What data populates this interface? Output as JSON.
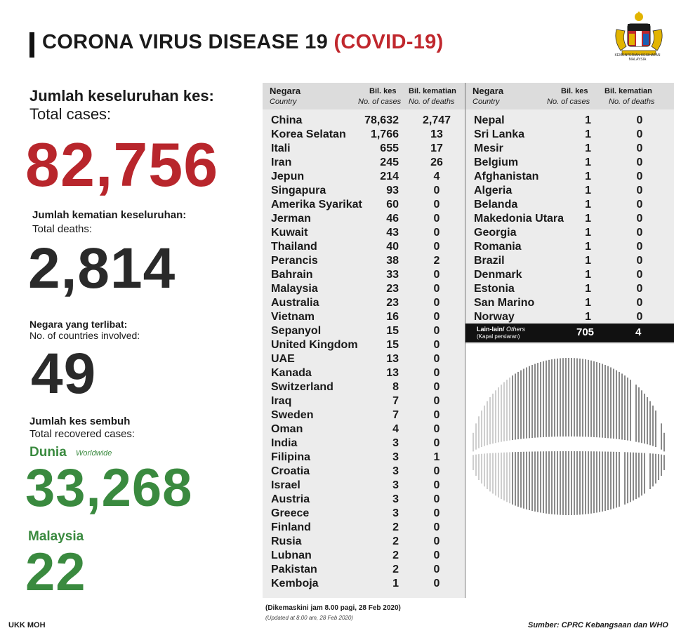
{
  "title": {
    "main": "CORONA VIRUS DISEASE 19",
    "paren": "(COVID-19)"
  },
  "crest": {
    "label_line1": "KEMENTERIAN KESIHATAN",
    "label_line2": "MALAYSIA"
  },
  "stats": {
    "total_cases_label_ms": "Jumlah keseluruhan kes:",
    "total_cases_label_en": "Total cases:",
    "total_cases": "82,756",
    "total_deaths_label_ms": "Jumlah kematian keseluruhan:",
    "total_deaths_label_en": "Total deaths:",
    "total_deaths": "2,814",
    "countries_label_ms": "Negara yang terlibat:",
    "countries_label_en": "No. of countries involved:",
    "countries": "49",
    "recovered_label_ms": "Jumlah kes sembuh",
    "recovered_label_en": "Total recovered cases:",
    "world_label": "Dunia",
    "world_label_en": "Worldwide",
    "world_recovered": "33,268",
    "malaysia_label": "Malaysia",
    "malaysia_recovered": "22"
  },
  "colors": {
    "red": "#b8262c",
    "green": "#3a8a3f",
    "dark": "#2a2a2a"
  },
  "table_headers": {
    "country_ms": "Negara",
    "country_en": "Country",
    "cases_ms": "Bil. kes",
    "cases_en": "No. of cases",
    "deaths_ms": "Bil. kematian",
    "deaths_en": "No. of deaths"
  },
  "table_left": [
    {
      "country": "China",
      "cases": "78,632",
      "deaths": "2,747"
    },
    {
      "country": "Korea Selatan",
      "cases": "1,766",
      "deaths": "13"
    },
    {
      "country": "Itali",
      "cases": "655",
      "deaths": "17"
    },
    {
      "country": "Iran",
      "cases": "245",
      "deaths": "26"
    },
    {
      "country": "Jepun",
      "cases": "214",
      "deaths": "4"
    },
    {
      "country": "Singapura",
      "cases": "93",
      "deaths": "0"
    },
    {
      "country": "Amerika Syarikat",
      "cases": "60",
      "deaths": "0"
    },
    {
      "country": "Jerman",
      "cases": "46",
      "deaths": "0"
    },
    {
      "country": "Kuwait",
      "cases": "43",
      "deaths": "0"
    },
    {
      "country": "Thailand",
      "cases": "40",
      "deaths": "0"
    },
    {
      "country": "Perancis",
      "cases": "38",
      "deaths": "2"
    },
    {
      "country": "Bahrain",
      "cases": "33",
      "deaths": "0"
    },
    {
      "country": "Malaysia",
      "cases": "23",
      "deaths": "0"
    },
    {
      "country": "Australia",
      "cases": "23",
      "deaths": "0"
    },
    {
      "country": "Vietnam",
      "cases": "16",
      "deaths": "0"
    },
    {
      "country": "Sepanyol",
      "cases": "15",
      "deaths": "0"
    },
    {
      "country": "United Kingdom",
      "cases": "15",
      "deaths": "0"
    },
    {
      "country": "UAE",
      "cases": "13",
      "deaths": "0"
    },
    {
      "country": "Kanada",
      "cases": "13",
      "deaths": "0"
    },
    {
      "country": "Switzerland",
      "cases": "8",
      "deaths": "0"
    },
    {
      "country": "Iraq",
      "cases": "7",
      "deaths": "0"
    },
    {
      "country": "Sweden",
      "cases": "7",
      "deaths": "0"
    },
    {
      "country": "Oman",
      "cases": "4",
      "deaths": "0"
    },
    {
      "country": "India",
      "cases": "3",
      "deaths": "0"
    },
    {
      "country": "Filipina",
      "cases": "3",
      "deaths": "1"
    },
    {
      "country": "Croatia",
      "cases": "3",
      "deaths": "0"
    },
    {
      "country": "Israel",
      "cases": "3",
      "deaths": "0"
    },
    {
      "country": "Austria",
      "cases": "3",
      "deaths": "0"
    },
    {
      "country": "Greece",
      "cases": "3",
      "deaths": "0"
    },
    {
      "country": "Finland",
      "cases": "2",
      "deaths": "0"
    },
    {
      "country": "Rusia",
      "cases": "2",
      "deaths": "0"
    },
    {
      "country": "Lubnan",
      "cases": "2",
      "deaths": "0"
    },
    {
      "country": "Pakistan",
      "cases": "2",
      "deaths": "0"
    },
    {
      "country": "Kemboja",
      "cases": "1",
      "deaths": "0"
    }
  ],
  "table_right": [
    {
      "country": "Nepal",
      "cases": "1",
      "deaths": "0"
    },
    {
      "country": "Sri Lanka",
      "cases": "1",
      "deaths": "0"
    },
    {
      "country": "Mesir",
      "cases": "1",
      "deaths": "0"
    },
    {
      "country": "Belgium",
      "cases": "1",
      "deaths": "0"
    },
    {
      "country": "Afghanistan",
      "cases": "1",
      "deaths": "0"
    },
    {
      "country": "Algeria",
      "cases": "1",
      "deaths": "0"
    },
    {
      "country": "Belanda",
      "cases": "1",
      "deaths": "0"
    },
    {
      "country": "Makedonia Utara",
      "cases": "1",
      "deaths": "0"
    },
    {
      "country": "Georgia",
      "cases": "1",
      "deaths": "0"
    },
    {
      "country": "Romania",
      "cases": "1",
      "deaths": "0"
    },
    {
      "country": "Brazil",
      "cases": "1",
      "deaths": "0"
    },
    {
      "country": "Denmark",
      "cases": "1",
      "deaths": "0"
    },
    {
      "country": "Estonia",
      "cases": "1",
      "deaths": "0"
    },
    {
      "country": "San Marino",
      "cases": "1",
      "deaths": "0"
    },
    {
      "country": "Norway",
      "cases": "1",
      "deaths": "0"
    }
  ],
  "others": {
    "label_ms": "Lain-lain/",
    "label_en": "Others",
    "sub": "(Kapal persiaran)",
    "cases": "705",
    "deaths": "4"
  },
  "footer": {
    "updated_ms": "(Dikemaskini  jam 8.00 pagi, 28 Feb 2020)",
    "updated_en": "(Updated at 8.00 am, 28 Feb 2020)",
    "left": "UKK MOH",
    "source": "Sumber: CPRC Kebangsaan dan WHO"
  }
}
